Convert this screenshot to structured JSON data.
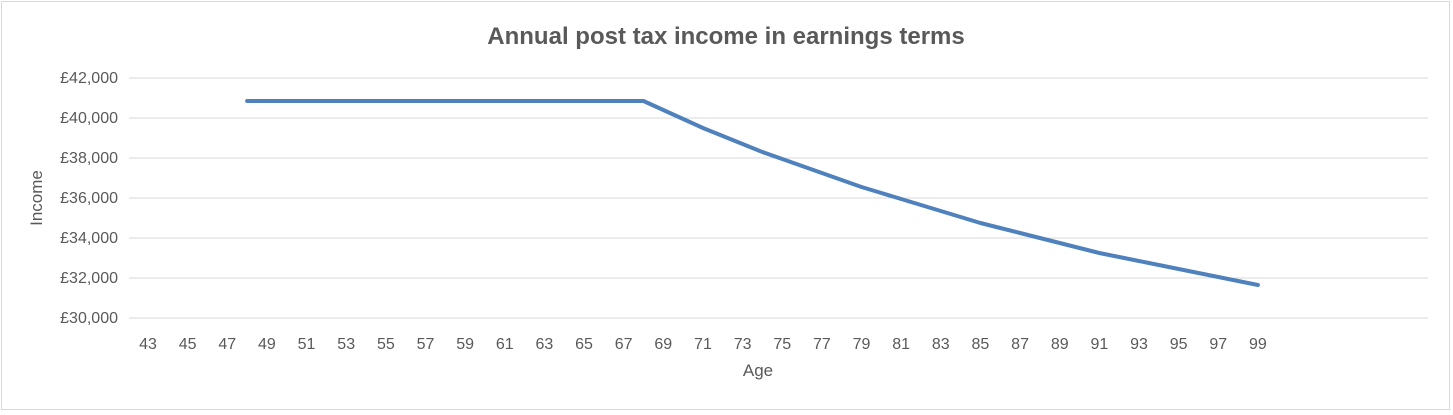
{
  "chart_data": {
    "type": "line",
    "title": "Annual post tax income in earnings terms",
    "xlabel": "Age",
    "ylabel": "Income",
    "x": [
      48,
      49,
      50,
      51,
      52,
      53,
      54,
      55,
      56,
      57,
      58,
      59,
      60,
      61,
      62,
      63,
      64,
      65,
      66,
      67,
      68,
      69,
      70,
      71,
      72,
      73,
      74,
      75,
      76,
      77,
      78,
      79,
      80,
      81,
      82,
      83,
      84,
      85,
      86,
      87,
      88,
      89,
      90,
      91,
      92,
      93,
      94,
      95,
      96,
      97,
      98,
      99
    ],
    "series": [
      {
        "name": "",
        "values": [
          40850,
          40850,
          40850,
          40850,
          40850,
          40850,
          40850,
          40850,
          40850,
          40850,
          40850,
          40850,
          40850,
          40850,
          40850,
          40850,
          40850,
          40850,
          40850,
          40850,
          40850,
          40400,
          39950,
          39500,
          39100,
          38700,
          38300,
          37950,
          37600,
          37250,
          36900,
          36550,
          36250,
          35950,
          35650,
          35350,
          35050,
          34750,
          34500,
          34250,
          34000,
          33750,
          33500,
          33250,
          33050,
          32850,
          32650,
          32450,
          32250,
          32050,
          31850,
          31650
        ]
      }
    ],
    "x_ticks": [
      "43",
      "45",
      "47",
      "49",
      "51",
      "53",
      "55",
      "57",
      "59",
      "61",
      "63",
      "65",
      "67",
      "69",
      "71",
      "73",
      "75",
      "77",
      "79",
      "81",
      "83",
      "85",
      "87",
      "89",
      "91",
      "93",
      "95",
      "97",
      "99"
    ],
    "y_ticks": [
      "£30,000",
      "£32,000",
      "£34,000",
      "£36,000",
      "£38,000",
      "£40,000",
      "£42,000"
    ],
    "xlim": [
      43,
      99
    ],
    "ylim": [
      30000,
      42000
    ],
    "grid": true,
    "legend": "none",
    "colors": {
      "line": "#4f81bd",
      "grid": "#d9d9d9",
      "text": "#595959"
    }
  }
}
